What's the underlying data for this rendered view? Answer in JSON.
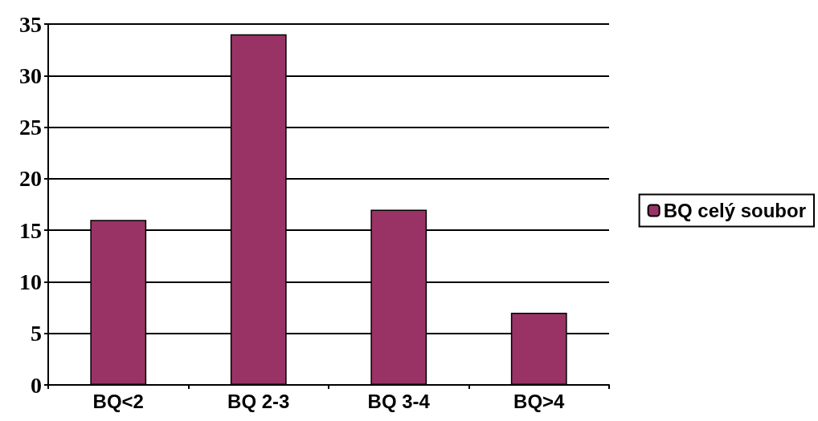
{
  "chart_data": {
    "type": "bar",
    "categories": [
      "BQ<2",
      "BQ 2-3",
      "BQ 3-4",
      "BQ>4"
    ],
    "series": [
      {
        "name": "BQ celý soubor",
        "color": "#993366",
        "values": [
          16,
          34,
          17,
          7
        ]
      }
    ],
    "ylim": [
      0,
      35
    ],
    "yticks": [
      0,
      5,
      10,
      15,
      20,
      25,
      30,
      35
    ],
    "grid": "y",
    "legend": "right"
  }
}
